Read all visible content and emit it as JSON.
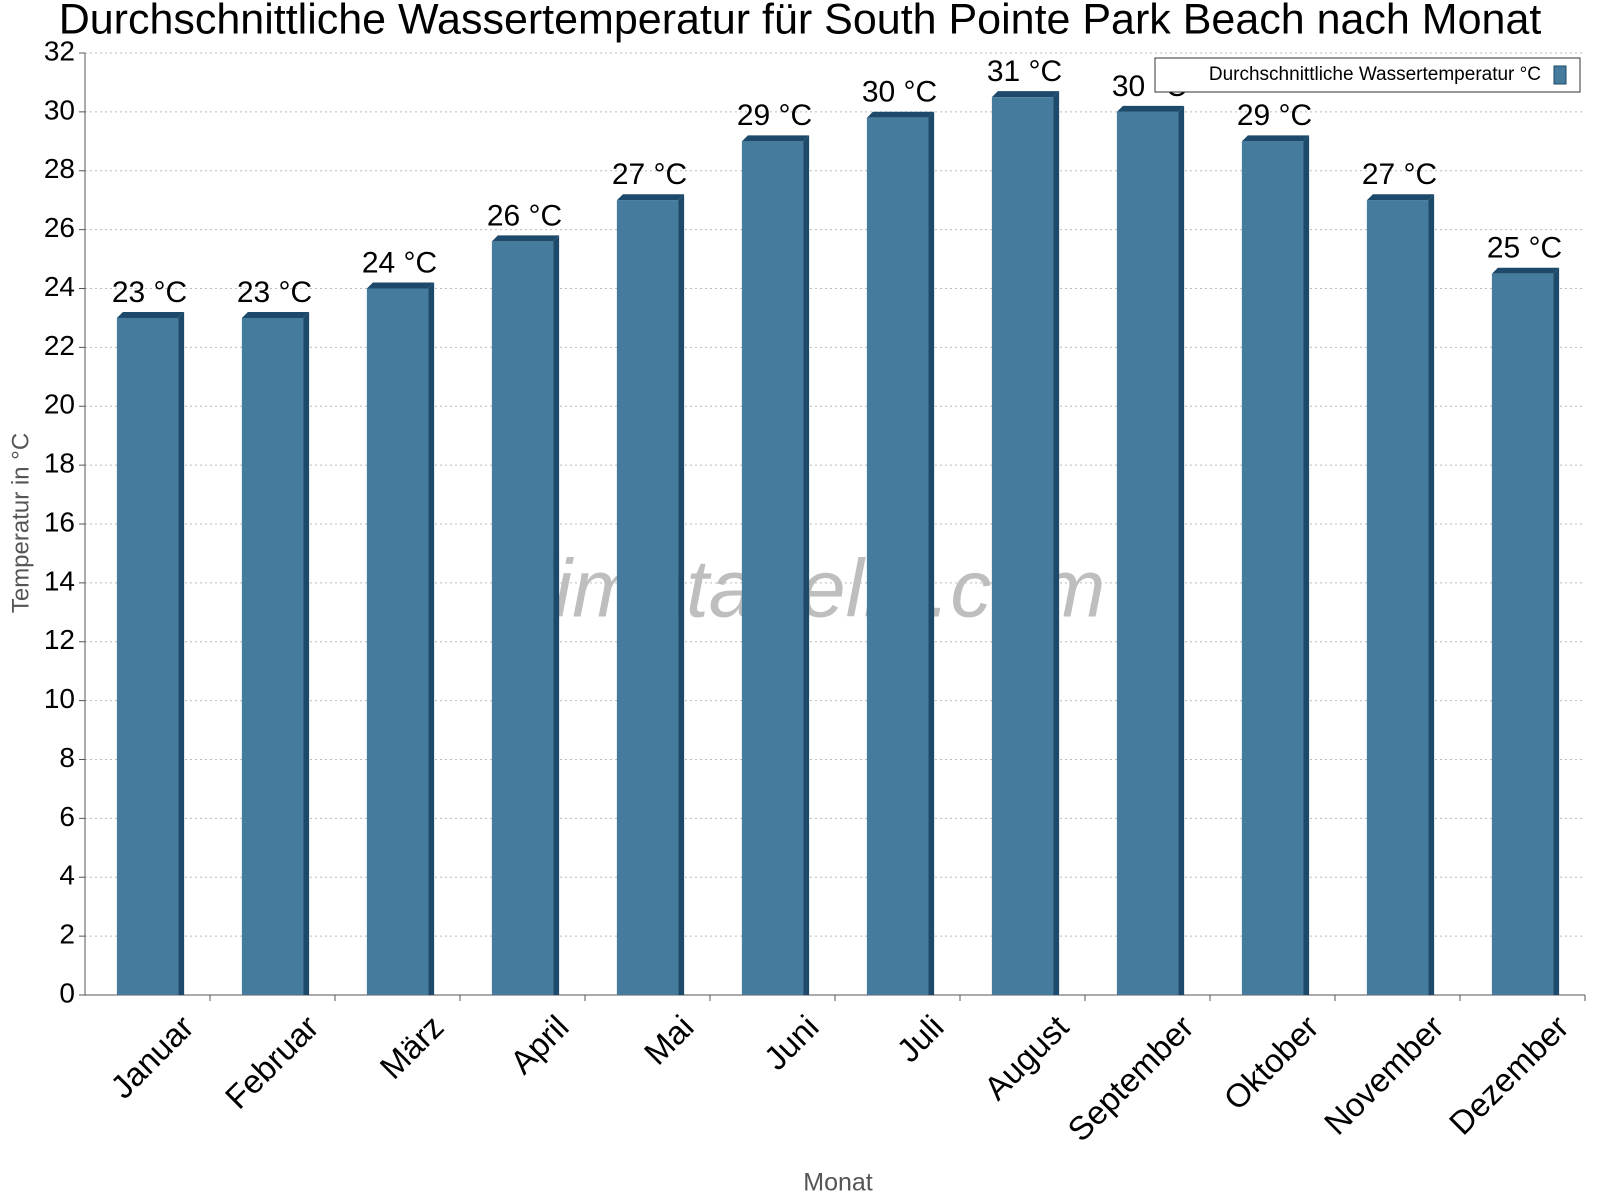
{
  "chart_data": {
    "type": "bar",
    "title": "Durchschnittliche Wassertemperatur für South Pointe Park Beach nach Monat",
    "x_label": "Monat",
    "y_label": "Temperatur in °C",
    "watermark": "klimatabelle.com",
    "categories": [
      "Januar",
      "Februar",
      "März",
      "April",
      "Mai",
      "Juni",
      "Juli",
      "August",
      "September",
      "Oktober",
      "November",
      "Dezember"
    ],
    "series": [
      {
        "name": "Durchschnittliche Wassertemperatur °C",
        "color": "#457b9d",
        "values": [
          23.0,
          23.0,
          24.0,
          25.6,
          27.0,
          29.0,
          29.8,
          30.5,
          30.0,
          29.0,
          27.0,
          24.5
        ],
        "value_labels": [
          "23 °C",
          "23 °C",
          "24 °C",
          "26 °C",
          "27 °C",
          "29 °C",
          "30 °C",
          "31 °C",
          "30 °C",
          "29 °C",
          "27 °C",
          "25 °C"
        ]
      }
    ],
    "ylim": [
      0,
      32
    ],
    "yticks": [
      0,
      2,
      4,
      6,
      8,
      10,
      12,
      14,
      16,
      18,
      20,
      22,
      24,
      26,
      28,
      30,
      32
    ],
    "grid": true,
    "legend": "top-right"
  }
}
